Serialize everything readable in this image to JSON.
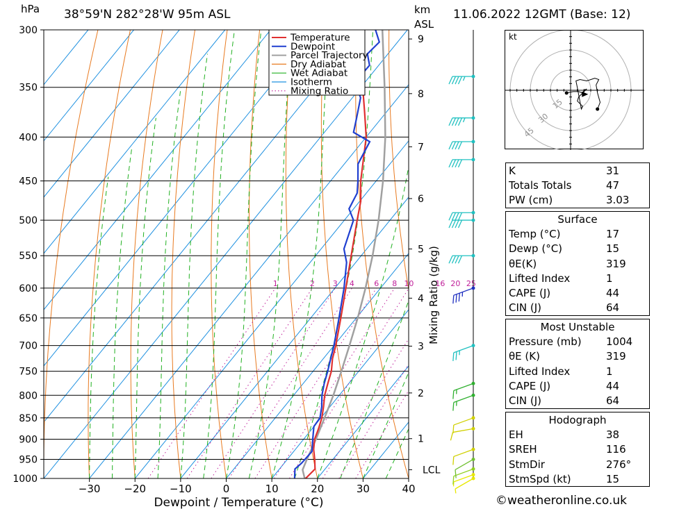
{
  "header": {
    "pressure_unit": "hPa",
    "location": "38°59'N  282°28'W  95m  ASL",
    "km_unit": "km",
    "asl_unit": "ASL",
    "datetime": "11.06.2022  12GMT  (Base: 12)"
  },
  "chart_data": {
    "type": "skew-t",
    "xlabel": "Dewpoint / Temperature (°C)",
    "right_axis_label": "Mixing Ratio (g/kg)",
    "pressure_levels": [
      300,
      350,
      400,
      450,
      500,
      550,
      600,
      650,
      700,
      750,
      800,
      850,
      900,
      950,
      1000
    ],
    "pressure_range": [
      1000,
      300
    ],
    "temp_ticks": [
      -30,
      -20,
      -10,
      0,
      10,
      20,
      30,
      40
    ],
    "temp_range_at_1000": [
      -40,
      40
    ],
    "km_ticks": [
      1,
      2,
      3,
      4,
      5,
      6,
      7,
      8,
      9
    ],
    "lcl_label": "LCL",
    "lcl_pressure": 977,
    "mixing_ratio_labels": [
      "1",
      "2",
      "3",
      "4",
      "6",
      "8",
      "10",
      "16",
      "20",
      "25"
    ],
    "mixing_ratio_label_pressure": 600,
    "legend": [
      "Temperature",
      "Dewpoint",
      "Parcel Trajectory",
      "Dry Adiabat",
      "Wet Adiabat",
      "Isotherm",
      "Mixing Ratio"
    ],
    "colors": {
      "temperature": "#e03030",
      "dewpoint": "#1f3fd0",
      "parcel": "#a0a0a0",
      "dry_adiabat": "#e87a20",
      "wet_adiabat": "#20b020",
      "isotherm": "#1e90e0",
      "mixing_ratio": "#c0209a"
    },
    "temperature_profile": [
      [
        1000,
        17.4
      ],
      [
        975,
        17.8
      ],
      [
        950,
        16.0
      ],
      [
        925,
        14.0
      ],
      [
        900,
        12.4
      ],
      [
        875,
        11.4
      ],
      [
        850,
        10.2
      ],
      [
        825,
        8.6
      ],
      [
        800,
        6.8
      ],
      [
        775,
        5.4
      ],
      [
        750,
        4.0
      ],
      [
        725,
        2.0
      ],
      [
        700,
        0.4
      ],
      [
        650,
        -3.4
      ],
      [
        600,
        -7.6
      ],
      [
        550,
        -12.2
      ],
      [
        500,
        -17.2
      ],
      [
        475,
        -19.8
      ],
      [
        450,
        -23.4
      ],
      [
        400,
        -30.0
      ],
      [
        375,
        -34.6
      ],
      [
        350,
        -39.6
      ],
      [
        325,
        -45.0
      ],
      [
        300,
        -50.8
      ]
    ],
    "dewpoint_profile": [
      [
        1000,
        15.0
      ],
      [
        975,
        13.4
      ],
      [
        960,
        13.8
      ],
      [
        930,
        14.0
      ],
      [
        900,
        12.0
      ],
      [
        870,
        10.0
      ],
      [
        850,
        9.8
      ],
      [
        825,
        8.2
      ],
      [
        800,
        6.2
      ],
      [
        775,
        4.6
      ],
      [
        750,
        3.2
      ],
      [
        725,
        1.6
      ],
      [
        700,
        0.0
      ],
      [
        650,
        -3.8
      ],
      [
        600,
        -8.0
      ],
      [
        560,
        -12.0
      ],
      [
        540,
        -15.0
      ],
      [
        500,
        -18.0
      ],
      [
        485,
        -21.0
      ],
      [
        465,
        -22.0
      ],
      [
        450,
        -24.0
      ],
      [
        430,
        -27.0
      ],
      [
        405,
        -28.4
      ],
      [
        395,
        -33.6
      ],
      [
        380,
        -35.5
      ],
      [
        360,
        -38.2
      ],
      [
        345,
        -42.2
      ],
      [
        330,
        -42.0
      ],
      [
        320,
        -44.5
      ],
      [
        310,
        -44.0
      ],
      [
        300,
        -47.0
      ]
    ],
    "parcel_profile": [
      [
        1000,
        17.2
      ],
      [
        977,
        15.2
      ],
      [
        950,
        14.3
      ],
      [
        900,
        12.7
      ],
      [
        850,
        10.8
      ],
      [
        800,
        8.7
      ],
      [
        750,
        6.2
      ],
      [
        700,
        3.4
      ],
      [
        650,
        0.3
      ],
      [
        600,
        -3.3
      ],
      [
        550,
        -7.5
      ],
      [
        500,
        -12.5
      ],
      [
        450,
        -18.5
      ],
      [
        400,
        -25.8
      ],
      [
        350,
        -34.8
      ],
      [
        300,
        -45.5
      ]
    ],
    "wind_barbs": [
      {
        "p": 1000,
        "dir": 240,
        "spd": 5,
        "color": "#e8e800"
      },
      {
        "p": 990,
        "dir": 250,
        "spd": 5,
        "color": "#e8e800"
      },
      {
        "p": 975,
        "dir": 250,
        "spd": 10,
        "color": "#90d020"
      },
      {
        "p": 950,
        "dir": 240,
        "spd": 10,
        "color": "#70c030"
      },
      {
        "p": 925,
        "dir": 250,
        "spd": 10,
        "color": "#d0d000"
      },
      {
        "p": 875,
        "dir": 260,
        "spd": 10,
        "color": "#d0d000"
      },
      {
        "p": 850,
        "dir": 250,
        "spd": 10,
        "color": "#d0d000"
      },
      {
        "p": 800,
        "dir": 250,
        "spd": 15,
        "color": "#30b030"
      },
      {
        "p": 775,
        "dir": 250,
        "spd": 15,
        "color": "#30b030"
      },
      {
        "p": 700,
        "dir": 250,
        "spd": 25,
        "color": "#20c0c0"
      },
      {
        "p": 600,
        "dir": 250,
        "spd": 35,
        "color": "#2030c0"
      },
      {
        "p": 550,
        "dir": 270,
        "spd": 40,
        "color": "#20c0c0"
      },
      {
        "p": 500,
        "dir": 270,
        "spd": 40,
        "color": "#20c0c0"
      },
      {
        "p": 490,
        "dir": 270,
        "spd": 40,
        "color": "#20c0c0"
      },
      {
        "p": 425,
        "dir": 270,
        "spd": 40,
        "color": "#20c0c0"
      },
      {
        "p": 405,
        "dir": 270,
        "spd": 40,
        "color": "#20c0c0"
      },
      {
        "p": 380,
        "dir": 270,
        "spd": 45,
        "color": "#20c0c0"
      },
      {
        "p": 340,
        "dir": 270,
        "spd": 45,
        "color": "#20c0c0"
      }
    ]
  },
  "hodograph": {
    "unit_label": "kt",
    "ring_labels": [
      "15",
      "30",
      "45"
    ],
    "trace": [
      [
        -3,
        -2
      ],
      [
        2,
        -1
      ],
      [
        6,
        -1
      ],
      [
        9,
        -2
      ],
      [
        11,
        -3
      ],
      [
        9,
        -2
      ],
      [
        10,
        0
      ],
      [
        12,
        1
      ],
      [
        9,
        -2
      ],
      [
        6,
        -5
      ],
      [
        5,
        -8
      ],
      [
        7,
        -10
      ],
      [
        9,
        -12
      ],
      [
        8,
        -14
      ],
      [
        5,
        2
      ],
      [
        4,
        7
      ],
      [
        7,
        8
      ],
      [
        12,
        7
      ],
      [
        18,
        9
      ],
      [
        21,
        8
      ],
      [
        19,
        4
      ],
      [
        20,
        -2
      ],
      [
        22,
        -9
      ],
      [
        20,
        -14
      ]
    ],
    "storm_motion_marker": [
      11,
      -3
    ]
  },
  "indices": {
    "top": [
      {
        "label": "K",
        "value": "31"
      },
      {
        "label": "Totals Totals",
        "value": "47"
      },
      {
        "label": "PW (cm)",
        "value": "3.03"
      }
    ],
    "surface_title": "Surface",
    "surface": [
      {
        "label": "Temp (°C)",
        "value": "17"
      },
      {
        "label": "Dewp (°C)",
        "value": "15"
      },
      {
        "label": "θE(K)",
        "value": "319"
      },
      {
        "label": "Lifted Index",
        "value": "1"
      },
      {
        "label": "CAPE (J)",
        "value": "44"
      },
      {
        "label": "CIN (J)",
        "value": "64"
      }
    ],
    "unstable_title": "Most Unstable",
    "unstable": [
      {
        "label": "Pressure (mb)",
        "value": "1004"
      },
      {
        "label": "θE (K)",
        "value": "319"
      },
      {
        "label": "Lifted Index",
        "value": "1"
      },
      {
        "label": "CAPE (J)",
        "value": "44"
      },
      {
        "label": "CIN (J)",
        "value": "64"
      }
    ],
    "hodo_title": "Hodograph",
    "hodo": [
      {
        "label": "EH",
        "value": "38"
      },
      {
        "label": "SREH",
        "value": "116"
      },
      {
        "label": "StmDir",
        "value": "276°"
      },
      {
        "label": "StmSpd (kt)",
        "value": "15"
      }
    ]
  },
  "credit": "©weatheronline.co.uk"
}
